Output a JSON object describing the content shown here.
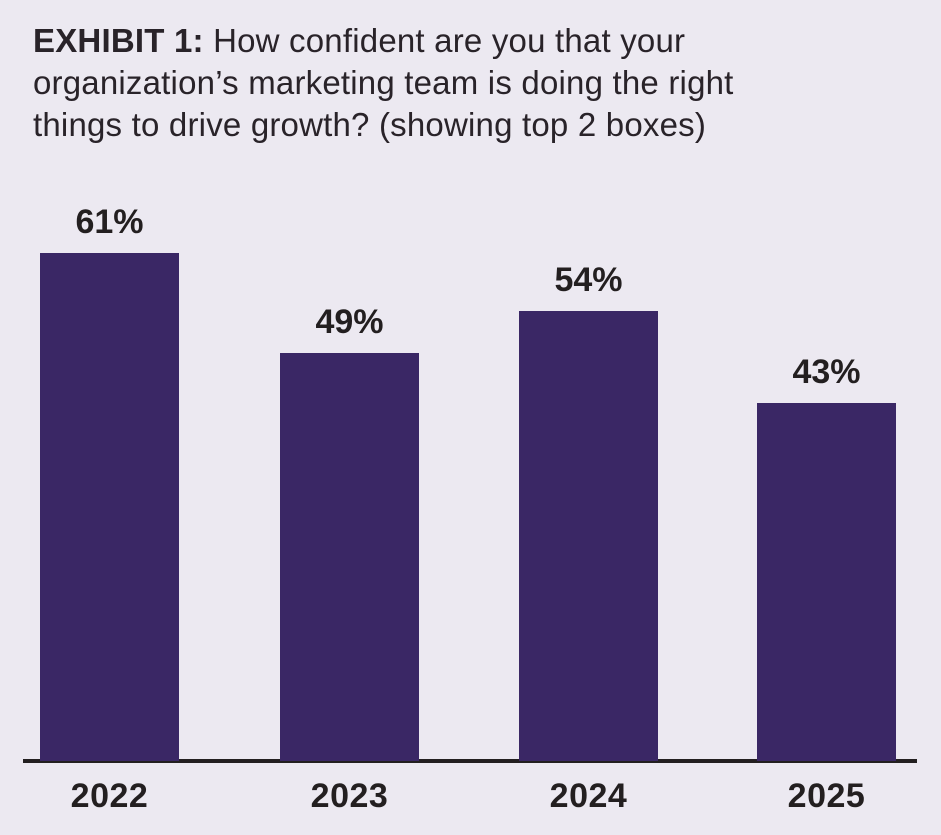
{
  "page": {
    "background_color": "#ece9f1"
  },
  "title": {
    "prefix": "EXHIBIT 1:",
    "line1_rest": " How confident are you that your",
    "line2": "organization’s marketing team is doing the right",
    "line3": "things to drive growth? (showing top 2 boxes)"
  },
  "chart_data": {
    "type": "bar",
    "title": "EXHIBIT 1: How confident are you that your organization’s marketing team is doing the right things to drive growth? (showing top 2 boxes)",
    "categories": [
      "2022",
      "2023",
      "2024",
      "2025"
    ],
    "values": [
      61,
      49,
      54,
      43
    ],
    "value_labels": [
      "61%",
      "49%",
      "54%",
      "43%"
    ],
    "xlabel": "",
    "ylabel": "",
    "ylim": [
      0,
      70
    ],
    "grid": false,
    "legend": false,
    "y_axis_visible": false,
    "bar_color": "#3a2765",
    "value_label_color": "#231f20",
    "tick_label_color": "#231f20",
    "axis_line_color": "#231f20",
    "title_color": "#292329"
  }
}
